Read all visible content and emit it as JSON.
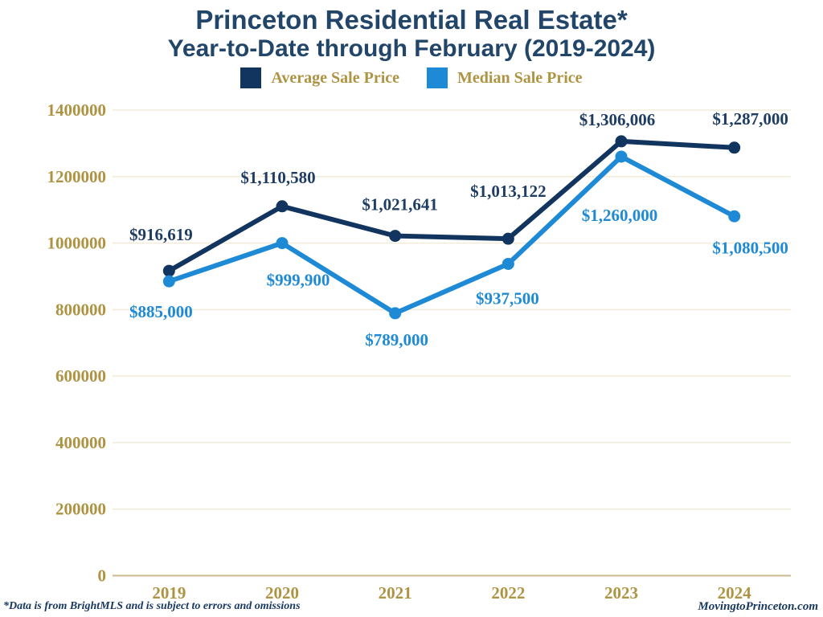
{
  "header": {
    "title": "Princeton Residential Real Estate*",
    "subtitle": "Year-to-Date through February (2019-2024)"
  },
  "footer": {
    "left": "*Data is from BrightMLS and is subject to errors and omissions",
    "right": "MovingtoPrinceton.com"
  },
  "colors": {
    "title_navy": "#224669",
    "gold": "#AE9342",
    "gridline": "#F1EBD8",
    "axis_line": "#C9B98C",
    "footer_navy": "#17375E"
  },
  "chart_data": {
    "type": "line",
    "title": "Princeton Residential Real Estate*",
    "subtitle": "Year-to-Date through February (2019-2024)",
    "categories": [
      "2019",
      "2020",
      "2021",
      "2022",
      "2023",
      "2024"
    ],
    "series": [
      {
        "name": "Average Sale Price",
        "color": "#11355F",
        "label_color": "#1F3D63",
        "values": [
          916619,
          1110580,
          1021641,
          1013122,
          1306006,
          1287000
        ],
        "labels": [
          "$916,619",
          "$1,110,580",
          "$1,021,641",
          "$1,013,122",
          "$1,306,006",
          "$1,287,000"
        ],
        "label_dx": [
          -10,
          -5,
          6,
          0,
          -5,
          20
        ],
        "label_dy": [
          -38,
          -29,
          -32,
          -52,
          -20,
          -29
        ]
      },
      {
        "name": "Median Sale Price",
        "color": "#1E8AD6",
        "label_color": "#1E8AD6",
        "values": [
          885000,
          999900,
          789000,
          937500,
          1260000,
          1080500
        ],
        "labels": [
          "$885,000",
          "$999,900",
          "$789,000",
          "$937,500",
          "$1,260,000",
          "$1,080,500"
        ],
        "label_dx": [
          -10,
          20,
          2,
          -1,
          -2,
          20
        ],
        "label_dy": [
          45,
          53,
          40,
          50,
          80,
          46
        ]
      }
    ],
    "yticks": [
      0,
      200000,
      400000,
      600000,
      800000,
      1000000,
      1200000,
      1400000
    ],
    "ylim": [
      0,
      1400000
    ],
    "grid": true,
    "legend_position": "top"
  }
}
